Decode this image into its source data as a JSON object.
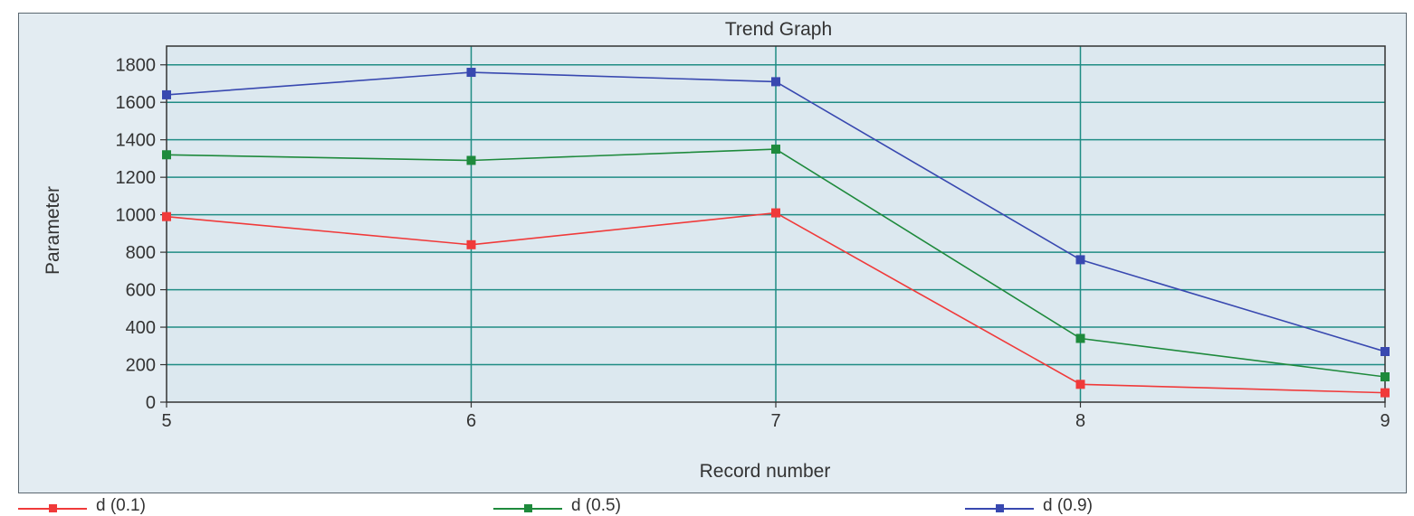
{
  "chart_data": {
    "type": "line",
    "title": "Trend Graph",
    "xlabel": "Record number",
    "ylabel": "Parameter",
    "x": [
      5,
      6,
      7,
      8,
      9
    ],
    "xlim": [
      5,
      9
    ],
    "ylim": [
      0,
      1900
    ],
    "yticks": [
      0,
      200,
      400,
      600,
      800,
      1000,
      1200,
      1400,
      1600,
      1800
    ],
    "grid": true,
    "legend_position": "bottom",
    "series": [
      {
        "name": "d (0.1)",
        "color": "#f03a3a",
        "values": [
          990,
          840,
          1010,
          95,
          50
        ]
      },
      {
        "name": "d (0.5)",
        "color": "#1e8a3c",
        "values": [
          1320,
          1290,
          1350,
          340,
          135
        ]
      },
      {
        "name": "d (0.9)",
        "color": "#3848b0",
        "values": [
          1640,
          1760,
          1710,
          760,
          270
        ]
      }
    ]
  },
  "colors": {
    "panel_background": "#e3ecf2",
    "plot_background": "#dce8ef",
    "grid_color": "#1f8c84",
    "axis_color": "#333333"
  }
}
